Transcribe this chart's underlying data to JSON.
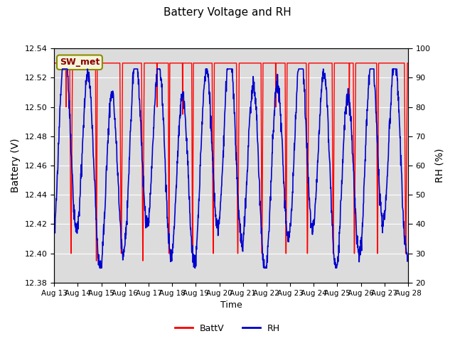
{
  "title": "Battery Voltage and RH",
  "xlabel": "Time",
  "ylabel_left": "Battery (V)",
  "ylabel_right": "RH (%)",
  "annotation": "SW_met",
  "ylim_left": [
    12.38,
    12.54
  ],
  "ylim_right": [
    20,
    100
  ],
  "yticks_left": [
    12.38,
    12.4,
    12.42,
    12.44,
    12.46,
    12.48,
    12.5,
    12.52,
    12.54
  ],
  "yticks_right": [
    20,
    30,
    40,
    50,
    60,
    70,
    80,
    90,
    100
  ],
  "xtick_labels": [
    "Aug 13",
    "Aug 14",
    "Aug 15",
    "Aug 16",
    "Aug 17",
    "Aug 18",
    "Aug 19",
    "Aug 20",
    "Aug 21",
    "Aug 22",
    "Aug 23",
    "Aug 24",
    "Aug 25",
    "Aug 26",
    "Aug 27",
    "Aug 28"
  ],
  "batt_color": "#FF0000",
  "rh_color": "#0000CD",
  "bg_color": "#DCDCDC",
  "fig_bg": "#FFFFFF",
  "legend_batt": "BattV",
  "legend_rh": "RH",
  "annotation_color": "#8B0000",
  "annotation_bg": "#F5F5DC",
  "annotation_edge": "#8B8B00"
}
